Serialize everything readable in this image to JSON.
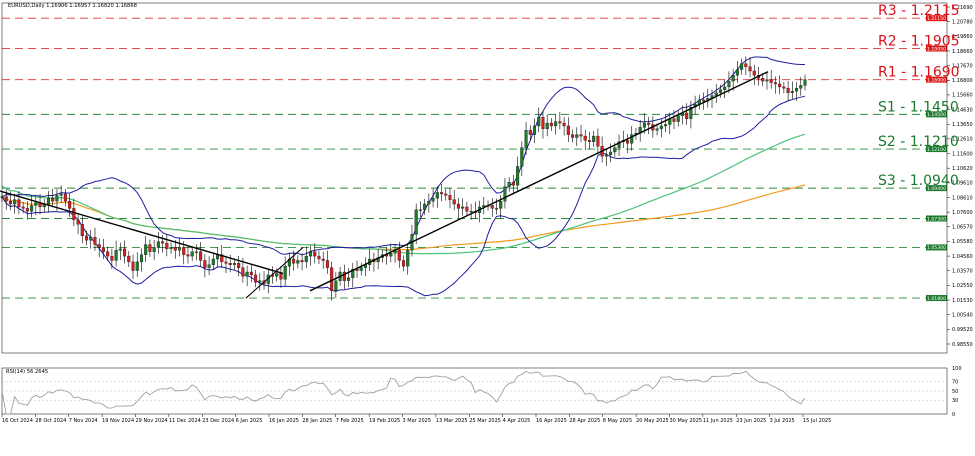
{
  "header": {
    "symbol_line": "EURUSD,Daily  1.16906 1.16957 1.16820 1.16868",
    "rsi_label": "RSI(14) 56.2645"
  },
  "levels": [
    {
      "id": "r3",
      "label": "R3 - 1.2115",
      "price": 1.2115,
      "tag": "1.21150",
      "kind": "resistance"
    },
    {
      "id": "r2",
      "label": "R2 - 1.1905",
      "price": 1.1905,
      "tag": "1.19050",
      "kind": "resistance"
    },
    {
      "id": "r1",
      "label": "R1 - 1.1690",
      "price": 1.169,
      "tag": "1.16900",
      "kind": "resistance"
    },
    {
      "id": "s1",
      "label": "S1 - 1.1450",
      "price": 1.145,
      "tag": "1.14500",
      "kind": "support"
    },
    {
      "id": "s2",
      "label": "S2 - 1.1210",
      "price": 1.121,
      "tag": "1.12100",
      "kind": "support"
    },
    {
      "id": "s3",
      "label": "S3 - 1.0940",
      "price": 1.094,
      "tag": "1.09400",
      "kind": "support"
    },
    {
      "id": "g1",
      "label": "",
      "price": 1.073,
      "tag": "1.07300",
      "kind": "support"
    },
    {
      "id": "g2",
      "label": "",
      "price": 1.053,
      "tag": "1.05300",
      "kind": "support"
    },
    {
      "id": "g3",
      "label": "",
      "price": 1.018,
      "tag": "1.01800",
      "kind": "support"
    }
  ],
  "colors": {
    "bull": "#1f7a2c",
    "bear": "#d42020",
    "bands": "#1f1fa0",
    "ma_green": "#4cc27a",
    "ma_orange": "#f39a1e",
    "trend": "#000000",
    "res": "#e03030",
    "sup": "#2a8a3a",
    "rsi": "#a0a0a0"
  },
  "chart_data": {
    "type": "candlestick",
    "title": "EURUSD,Daily",
    "y_ticks": [
      "1.21690",
      "1.20780",
      "1.19860",
      "1.18660",
      "1.17670",
      "1.16800",
      "1.15660",
      "1.14630",
      "1.13650",
      "1.12610",
      "1.11600",
      "1.10620",
      "1.09610",
      "1.08610",
      "1.07600",
      "1.06570",
      "1.05580",
      "1.04560",
      "1.03570",
      "1.02550",
      "1.01530",
      "1.00540",
      "0.99520",
      "0.98550"
    ],
    "x_ticks": [
      "16 Oct 2024",
      "28 Oct 2024",
      "7 Nov 2024",
      "19 Nov 2024",
      "29 Nov 2024",
      "11 Dec 2024",
      "23 Dec 2024",
      "6 Jan 2025",
      "16 Jan 2025",
      "28 Jan 2025",
      "7 Feb 2025",
      "19 Feb 2025",
      "3 Mar 2025",
      "13 Mar 2025",
      "25 Mar 2025",
      "4 Apr 2025",
      "16 Apr 2025",
      "28 Apr 2025",
      "8 May 2025",
      "20 May 2025",
      "30 May 2025",
      "11 Jun 2025",
      "23 Jun 2025",
      "3 Jul 2025",
      "15 Jul 2025"
    ],
    "ylim": [
      0.98,
      1.222
    ],
    "close": [
      1.088,
      1.085,
      1.083,
      1.086,
      1.081,
      1.08,
      1.078,
      1.082,
      1.084,
      1.081,
      1.083,
      1.087,
      1.085,
      1.089,
      1.09,
      1.085,
      1.08,
      1.072,
      1.069,
      1.061,
      1.058,
      1.06,
      1.055,
      1.053,
      1.05,
      1.047,
      1.044,
      1.051,
      1.052,
      1.047,
      1.043,
      1.037,
      1.043,
      1.048,
      1.055,
      1.05,
      1.053,
      1.057,
      1.056,
      1.052,
      1.053,
      1.051,
      1.053,
      1.048,
      1.047,
      1.05,
      1.05,
      1.044,
      1.039,
      1.041,
      1.045,
      1.048,
      1.043,
      1.042,
      1.041,
      1.042,
      1.039,
      1.033,
      1.036,
      1.034,
      1.029,
      1.03,
      1.028,
      1.034,
      1.033,
      1.035,
      1.031,
      1.04,
      1.045,
      1.042,
      1.044,
      1.043,
      1.047,
      1.05,
      1.047,
      1.045,
      1.044,
      1.039,
      1.023,
      1.03,
      1.036,
      1.03,
      1.032,
      1.038,
      1.037,
      1.039,
      1.041,
      1.045,
      1.043,
      1.046,
      1.048,
      1.047,
      1.049,
      1.051,
      1.044,
      1.04,
      1.051,
      1.062,
      1.079,
      1.079,
      1.083,
      1.085,
      1.087,
      1.091,
      1.09,
      1.089,
      1.086,
      1.083,
      1.08,
      1.081,
      1.078,
      1.078,
      1.077,
      1.081,
      1.082,
      1.082,
      1.08,
      1.08,
      1.085,
      1.095,
      1.098,
      1.096,
      1.109,
      1.122,
      1.134,
      1.131,
      1.137,
      1.143,
      1.135,
      1.139,
      1.137,
      1.14,
      1.139,
      1.137,
      1.131,
      1.129,
      1.131,
      1.13,
      1.127,
      1.126,
      1.13,
      1.123,
      1.116,
      1.117,
      1.119,
      1.122,
      1.126,
      1.127,
      1.125,
      1.131,
      1.132,
      1.136,
      1.139,
      1.138,
      1.134,
      1.135,
      1.137,
      1.138,
      1.142,
      1.14,
      1.144,
      1.146,
      1.142,
      1.15,
      1.152,
      1.155,
      1.154,
      1.156,
      1.158,
      1.16,
      1.162,
      1.164,
      1.168,
      1.172,
      1.176,
      1.18,
      1.178,
      1.175,
      1.172,
      1.17,
      1.168,
      1.169,
      1.167,
      1.166,
      1.164,
      1.163,
      1.16,
      1.161,
      1.163,
      1.165,
      1.169
    ],
    "support_levels": [
      1.145,
      1.121,
      1.094,
      1.073,
      1.053,
      1.018
    ],
    "resistance_levels": [
      1.2115,
      1.1905,
      1.169
    ],
    "rsi_ticks": [
      "100",
      "70",
      "50",
      "30",
      "0"
    ]
  }
}
